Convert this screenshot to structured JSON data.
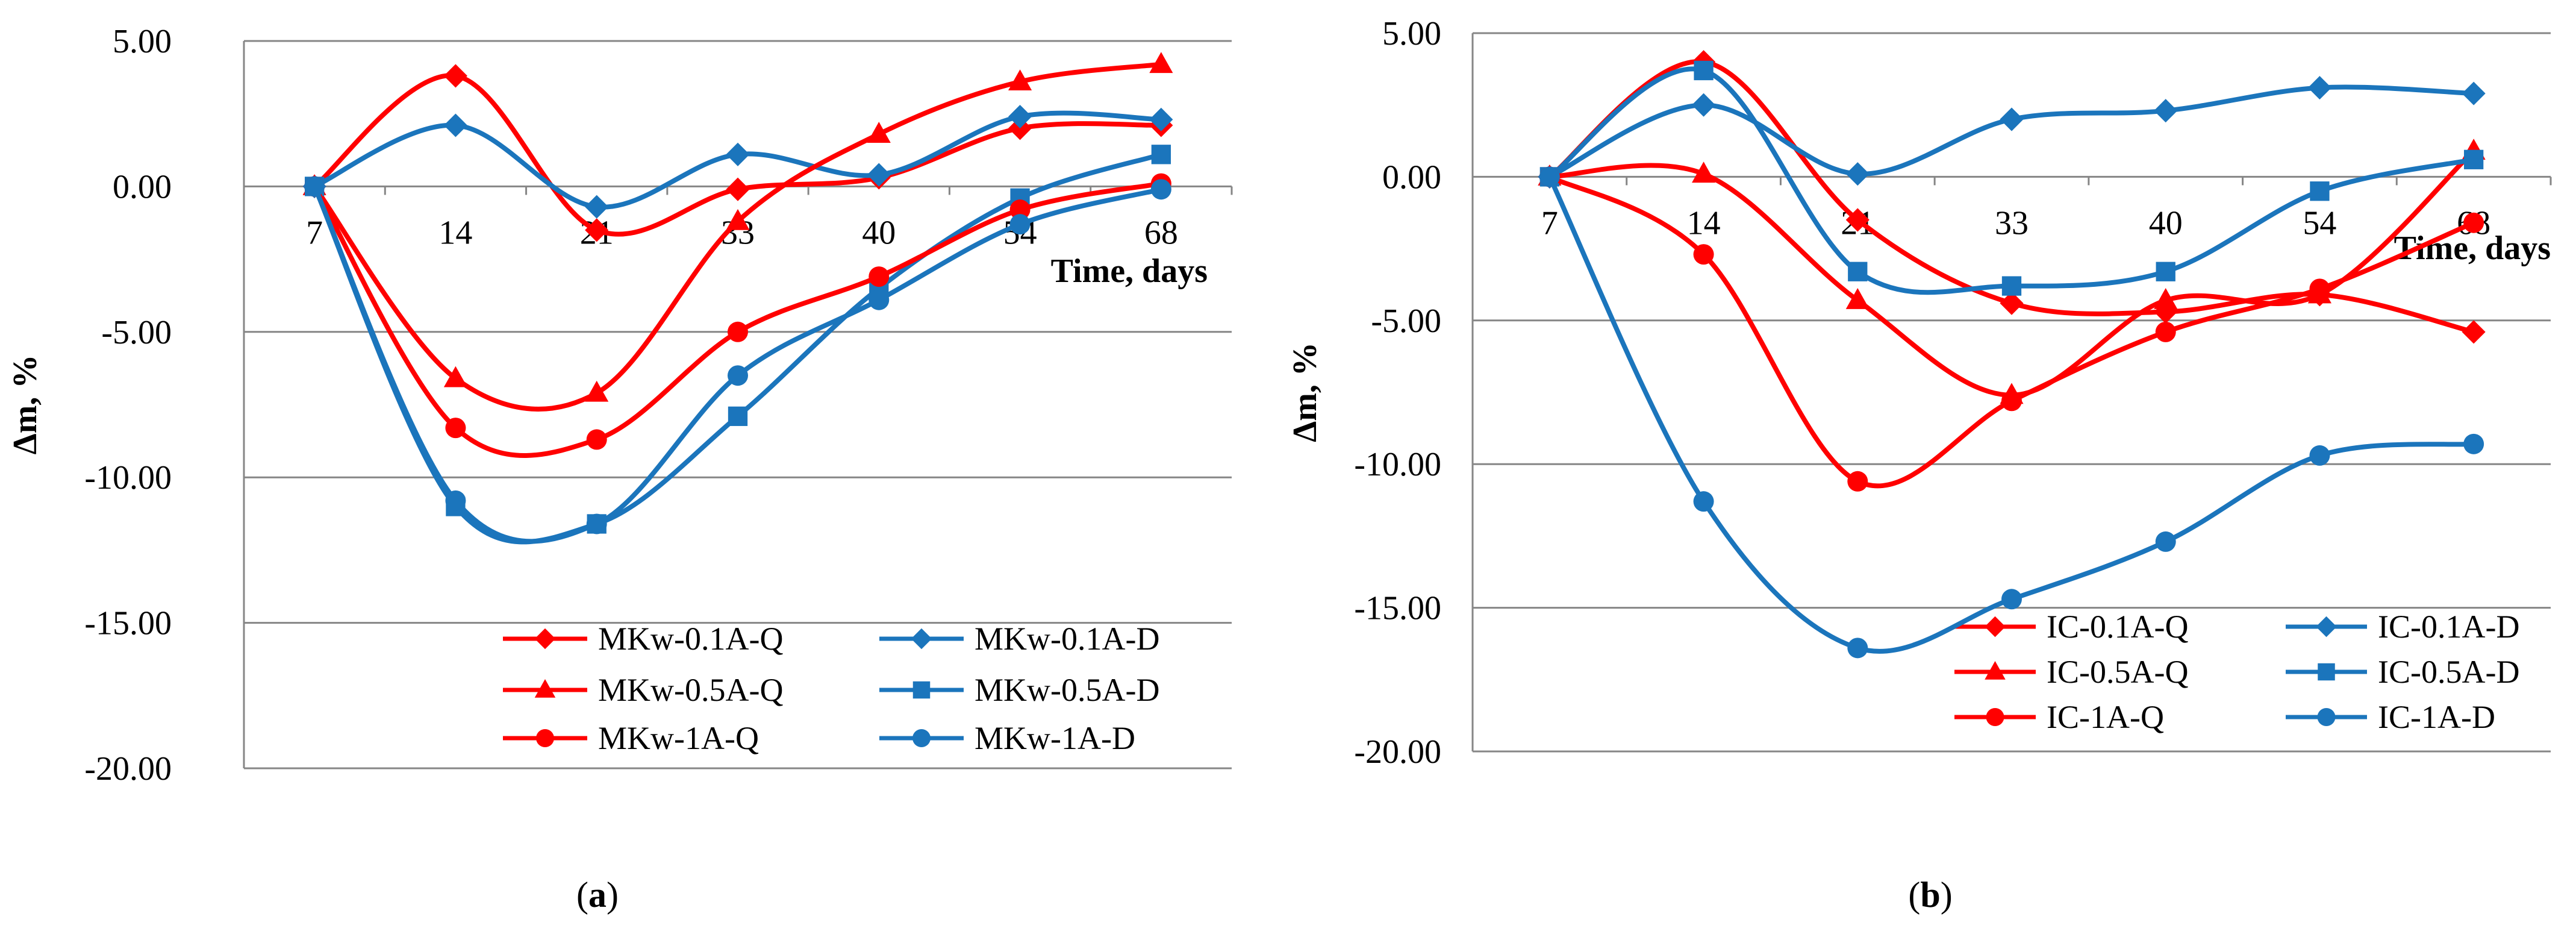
{
  "colors": {
    "q": "#FF0000",
    "d": "#1B75BC",
    "grid": "#868686",
    "axis": "#868686"
  },
  "chart_data": [
    {
      "type": "line",
      "panel": "a",
      "caption_letter": "a",
      "xlabel": "Time, days",
      "ylabel": "Δm, %",
      "categories": [
        "7",
        "14",
        "21",
        "33",
        "40",
        "54",
        "68"
      ],
      "yticks": [
        "5.00",
        "0.00",
        "-5.00",
        "-10.00",
        "-15.00",
        "-20.00"
      ],
      "ylim": [
        -20,
        5
      ],
      "grid": true,
      "legend_position": "bottom-right",
      "series": [
        {
          "name": "MKw-0.1A-Q",
          "marker": "diamond",
          "color_key": "q",
          "values": [
            0,
            3.8,
            -1.5,
            -0.1,
            0.3,
            2.0,
            2.1
          ]
        },
        {
          "name": "MKw-0.1A-D",
          "marker": "diamond",
          "color_key": "d",
          "values": [
            0,
            2.1,
            -0.7,
            1.1,
            0.4,
            2.4,
            2.3
          ]
        },
        {
          "name": "MKw-0.5A-Q",
          "marker": "triangle",
          "color_key": "q",
          "values": [
            0,
            -6.6,
            -7.1,
            -1.2,
            1.8,
            3.6,
            4.2
          ]
        },
        {
          "name": "MKw-0.5A-D",
          "marker": "square",
          "color_key": "d",
          "values": [
            0,
            -11.0,
            -11.6,
            -7.9,
            -3.5,
            -0.4,
            1.1
          ]
        },
        {
          "name": "MKw-1A-Q",
          "marker": "circle",
          "color_key": "q",
          "values": [
            0,
            -8.3,
            -8.7,
            -5.0,
            -3.1,
            -0.8,
            0.1
          ]
        },
        {
          "name": "MKw-1A-D",
          "marker": "circle",
          "color_key": "d",
          "values": [
            0,
            -10.8,
            -11.6,
            -6.5,
            -3.9,
            -1.3,
            -0.1
          ]
        }
      ]
    },
    {
      "type": "line",
      "panel": "b",
      "caption_letter": "b",
      "xlabel": "Time, days",
      "ylabel": "Δm, %",
      "categories": [
        "7",
        "14",
        "21",
        "33",
        "40",
        "54",
        "68"
      ],
      "yticks": [
        "5.00",
        "0.00",
        "-5.00",
        "-10.00",
        "-15.00",
        "-20.00"
      ],
      "ylim": [
        -20,
        5
      ],
      "grid": true,
      "legend_position": "bottom-right",
      "series": [
        {
          "name": "IC-0.1A-Q",
          "marker": "diamond",
          "color_key": "q",
          "values": [
            0,
            4.0,
            -1.5,
            -4.4,
            -4.7,
            -4.1,
            -5.4
          ]
        },
        {
          "name": "IC-0.1A-D",
          "marker": "diamond",
          "color_key": "d",
          "values": [
            0,
            2.5,
            0.1,
            2.0,
            2.3,
            3.1,
            2.9
          ]
        },
        {
          "name": "IC-0.5A-Q",
          "marker": "triangle",
          "color_key": "q",
          "values": [
            0,
            0.1,
            -4.3,
            -7.6,
            -4.3,
            -4.1,
            0.9
          ]
        },
        {
          "name": "IC-0.5A-D",
          "marker": "square",
          "color_key": "d",
          "values": [
            0,
            3.7,
            -3.3,
            -3.8,
            -3.3,
            -0.5,
            0.6
          ]
        },
        {
          "name": "IC-1A-Q",
          "marker": "circle",
          "color_key": "q",
          "values": [
            0,
            -2.7,
            -10.6,
            -7.8,
            -5.4,
            -3.9,
            -1.6
          ]
        },
        {
          "name": "IC-1A-D",
          "marker": "circle",
          "color_key": "d",
          "values": [
            0,
            -11.3,
            -16.4,
            -14.7,
            -12.7,
            -9.7,
            -9.3
          ]
        }
      ]
    }
  ]
}
